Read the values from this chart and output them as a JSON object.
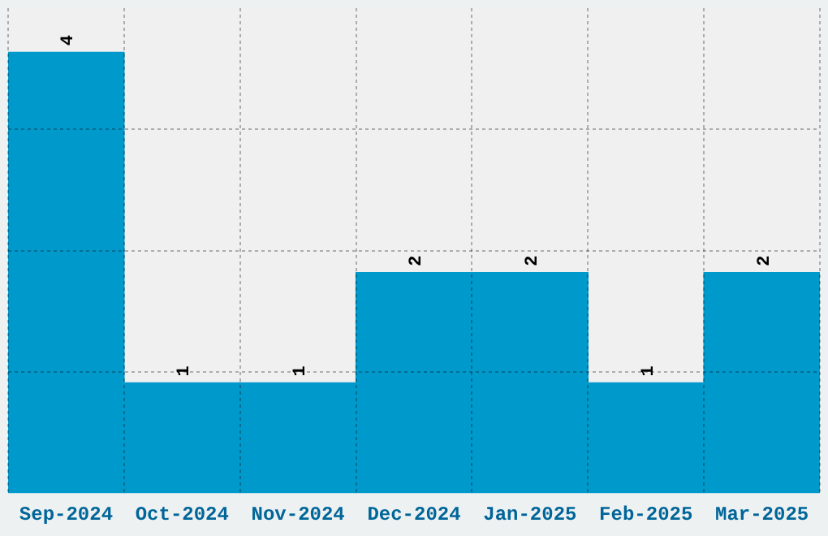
{
  "chart_data": {
    "type": "bar",
    "categories": [
      "Sep-2024",
      "Oct-2024",
      "Nov-2024",
      "Dec-2024",
      "Jan-2025",
      "Feb-2025",
      "Mar-2025"
    ],
    "values": [
      4,
      1,
      1,
      2,
      2,
      1,
      2
    ],
    "color": "#0099cc",
    "ylim": [
      0,
      4.4
    ],
    "yticks": [
      {
        "value": 1.1,
        "label": null
      },
      {
        "value": 2.2,
        "label": null
      },
      {
        "value": 3.3,
        "label": null
      }
    ],
    "tick_labels": "x",
    "grid": true,
    "data_labels": true
  }
}
